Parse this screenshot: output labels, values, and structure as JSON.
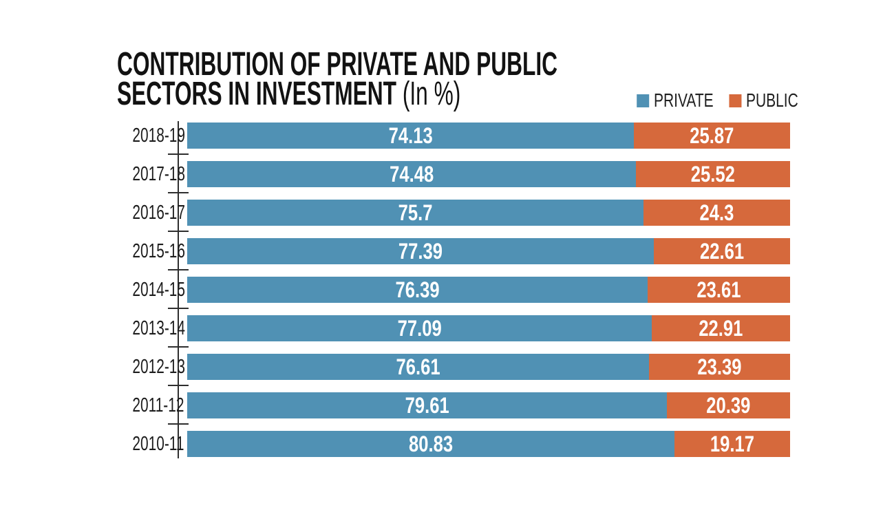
{
  "title_lines": {
    "line1": "CONTRIBUTION OF PRIVATE AND PUBLIC",
    "line2_bold": "SECTORS IN INVESTMENT",
    "line2_suffix": " (In %)"
  },
  "colors": {
    "private": "#5091B4",
    "public": "#D6693C",
    "axis": "#2E2E2E",
    "title_text": "#121212",
    "value_text": "#FFFFFF"
  },
  "chart_data": {
    "type": "bar",
    "orientation": "horizontal",
    "stacked": true,
    "title": "CONTRIBUTION OF PRIVATE AND PUBLIC SECTORS IN INVESTMENT (In %)",
    "categories": [
      "2018-19",
      "2017-18",
      "2016-17",
      "2015-16",
      "2014-15",
      "2013-14",
      "2012-13",
      "2011-12",
      "2010-11"
    ],
    "series": [
      {
        "name": "PRIVATE",
        "color": "#5091B4",
        "values": [
          74.13,
          74.48,
          75.7,
          77.39,
          76.39,
          77.09,
          76.61,
          79.61,
          80.83
        ]
      },
      {
        "name": "PUBLIC",
        "color": "#D6693C",
        "values": [
          25.87,
          25.52,
          24.3,
          22.61,
          23.61,
          22.91,
          23.39,
          20.39,
          19.17
        ]
      }
    ],
    "xlim": [
      0,
      100
    ],
    "grid": false,
    "legend_position": "top-right",
    "value_labels": "inside-white"
  }
}
